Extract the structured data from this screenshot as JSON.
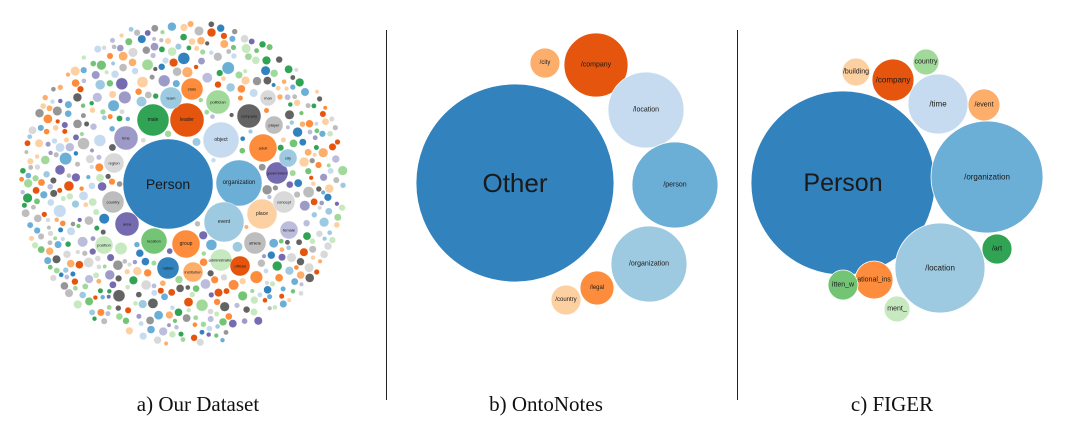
{
  "palette": {
    "blue": "#3182bd",
    "blue_mid": "#6baed6",
    "blue_light": "#9ecae1",
    "blue_pale": "#c6dbef",
    "orange": "#e6550d",
    "orange_mid": "#fd8d3c",
    "orange_light": "#fdae6b",
    "orange_pale": "#fdd0a2",
    "green": "#31a354",
    "green_mid": "#74c476",
    "green_light": "#a1d99b",
    "green_pale": "#c7e9c0",
    "purple": "#756bb1",
    "purple_mid": "#9e9ac8",
    "purple_light": "#bcbddc",
    "gray": "#636363",
    "gray_mid": "#969696",
    "gray_light": "#bdbdbd",
    "gray_pale": "#d9d9d9"
  },
  "panels": [
    {
      "caption": "a) Our Dataset",
      "bubbles": [
        {
          "label": "Person",
          "color": "blue"
        },
        {
          "label": "organization",
          "color": "blue_mid"
        },
        {
          "label": "object",
          "color": "blue_pale"
        },
        {
          "label": "event",
          "color": "blue_light"
        },
        {
          "label": "leader",
          "color": "orange"
        },
        {
          "label": "male",
          "color": "green"
        },
        {
          "label": "team",
          "color": "blue_light"
        },
        {
          "label": "state",
          "color": "orange_mid"
        },
        {
          "label": "politician",
          "color": "green_light"
        },
        {
          "label": "company",
          "color": "gray"
        },
        {
          "label": "adult",
          "color": "orange_mid"
        },
        {
          "label": "government",
          "color": "purple"
        },
        {
          "label": "place",
          "color": "orange_pale"
        },
        {
          "label": "concept",
          "color": "gray_pale"
        },
        {
          "label": "group",
          "color": "orange_mid"
        },
        {
          "label": "location",
          "color": "green_mid"
        },
        {
          "label": "nation",
          "color": "blue"
        },
        {
          "label": "administration",
          "color": "green_pale"
        },
        {
          "label": "athlete",
          "color": "gray_light"
        },
        {
          "label": "official",
          "color": "orange"
        },
        {
          "label": "time",
          "color": "purple_mid"
        },
        {
          "label": "region",
          "color": "gray_pale"
        },
        {
          "label": "country",
          "color": "gray_light"
        },
        {
          "label": "area",
          "color": "purple"
        },
        {
          "label": "city",
          "color": "blue_light"
        },
        {
          "label": "institution",
          "color": "orange_light"
        },
        {
          "label": "position",
          "color": "green_pale"
        },
        {
          "label": "female",
          "color": "purple_light"
        },
        {
          "label": "player",
          "color": "gray_light"
        },
        {
          "label": "man",
          "color": "gray_pale"
        }
      ]
    },
    {
      "caption": "b) OntoNotes",
      "bubbles": [
        {
          "label": "Other",
          "color": "blue"
        },
        {
          "label": "/company",
          "color": "orange"
        },
        {
          "label": "/city",
          "color": "orange_light"
        },
        {
          "label": "/location",
          "color": "blue_pale"
        },
        {
          "label": "/person",
          "color": "blue_mid"
        },
        {
          "label": "/organization",
          "color": "blue_light"
        },
        {
          "label": "/legal",
          "color": "orange_mid"
        },
        {
          "label": "/country",
          "color": "orange_pale"
        }
      ]
    },
    {
      "caption": "c) FIGER",
      "bubbles": [
        {
          "label": "Person",
          "color": "blue"
        },
        {
          "label": "/organization",
          "color": "blue_mid"
        },
        {
          "label": "/location",
          "color": "blue_light"
        },
        {
          "label": "/time",
          "color": "blue_pale"
        },
        {
          "label": "/company",
          "color": "orange"
        },
        {
          "label": "/building",
          "color": "orange_pale"
        },
        {
          "label": "country",
          "color": "green_light"
        },
        {
          "label": "/event",
          "color": "orange_light"
        },
        {
          "label": "/art",
          "color": "green"
        },
        {
          "label": "ational_ins",
          "color": "orange_mid"
        },
        {
          "label": "itten_w",
          "color": "green_mid"
        },
        {
          "label": "ment_",
          "color": "green_pale"
        }
      ]
    }
  ]
}
